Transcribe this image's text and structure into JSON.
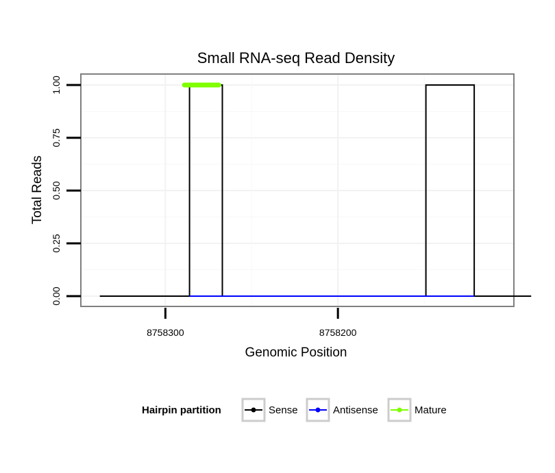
{
  "chart_data": {
    "type": "line",
    "title": "Small RNA-seq Read Density",
    "xlabel": "Genomic Position",
    "ylabel": "Total Reads",
    "x_reversed": true,
    "xlim": [
      8758349,
      8758098
    ],
    "ylim": [
      0,
      1
    ],
    "x_ticks": [
      8758300,
      8758200
    ],
    "x_tick_labels": [
      "8758300",
      "8758200"
    ],
    "y_ticks": [
      0,
      0.25,
      0.5,
      0.75,
      1
    ],
    "y_tick_labels": [
      "0.00",
      "0.25",
      "0.50",
      "0.75",
      "1.00"
    ],
    "grid": true,
    "legend": {
      "title": "Hairpin partition",
      "position": "bottom",
      "entries": [
        {
          "label": "Sense",
          "color": "#000000"
        },
        {
          "label": "Antisense",
          "color": "#0000ff"
        },
        {
          "label": "Mature",
          "color": "#7fff00"
        }
      ]
    },
    "series": [
      {
        "name": "Sense",
        "color": "#000000",
        "points": [
          [
            8758338,
            0
          ],
          [
            8758286,
            0
          ],
          [
            8758286,
            1
          ],
          [
            8758267,
            1
          ],
          [
            8758267,
            0
          ],
          [
            8758149,
            0
          ],
          [
            8758149,
            1
          ],
          [
            8758121,
            1
          ],
          [
            8758121,
            0
          ],
          [
            8758088,
            0
          ]
        ]
      },
      {
        "name": "Antisense",
        "color": "#0000ff",
        "points": [
          [
            8758286,
            0
          ],
          [
            8758267,
            0
          ],
          [
            8758149,
            0
          ],
          [
            8758121,
            0
          ]
        ]
      },
      {
        "name": "Mature",
        "color": "#7fff00",
        "points": [
          [
            8758289,
            1
          ],
          [
            8758269,
            1
          ]
        ]
      }
    ]
  }
}
